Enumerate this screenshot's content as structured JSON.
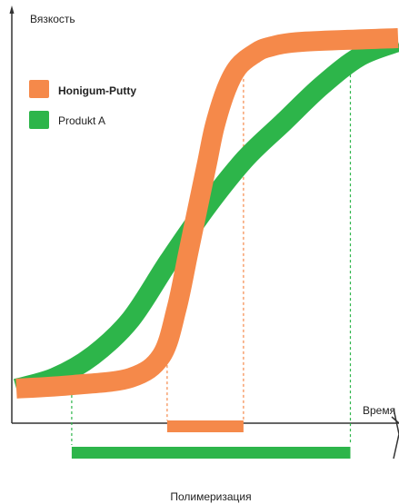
{
  "chart_data": {
    "type": "line",
    "title": "",
    "xlabel": "Время",
    "ylabel": "Вязкость",
    "xlim": [
      0,
      100
    ],
    "ylim": [
      0,
      100
    ],
    "grid": false,
    "legend_position": "top-left",
    "series": [
      {
        "name": "Honigum-Putty",
        "color": "#f5894a",
        "x": [
          0,
          15,
          30,
          38,
          42,
          45,
          48,
          50,
          52,
          55,
          58,
          62,
          66,
          75,
          100
        ],
        "y": [
          3,
          4,
          6,
          12,
          25,
          40,
          55,
          65,
          75,
          85,
          91,
          94.5,
          96.5,
          98,
          99
        ]
      },
      {
        "name": "Produkt A",
        "color": "#2db54a",
        "x": [
          0,
          10,
          20,
          30,
          40,
          50,
          60,
          70,
          80,
          90,
          100
        ],
        "y": [
          3,
          6,
          12,
          22,
          38,
          53,
          66,
          76,
          86,
          94,
          98
        ]
      }
    ],
    "annotations": [
      {
        "series": "Honigum-Putty",
        "x_start": 39.5,
        "x_end": 59.5
      },
      {
        "series": "Produkt A",
        "x_start": 14.5,
        "x_end": 87.5,
        "label": "Полимеризация"
      }
    ]
  }
}
